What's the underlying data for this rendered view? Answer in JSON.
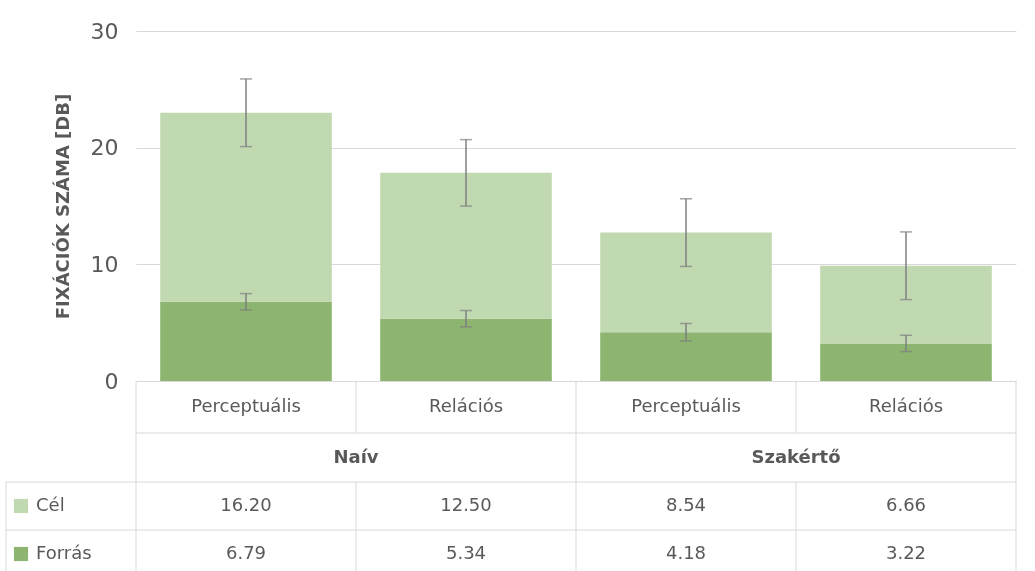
{
  "chart_data": {
    "type": "bar",
    "stacked": true,
    "ylabel": "FIXÁCIÓK SZÁMA [DB]",
    "categories": [
      "Perceptuális",
      "Relációs",
      "Perceptuális",
      "Relációs"
    ],
    "annotations": [
      "Naív",
      "Szakértő"
    ],
    "series": [
      {
        "name": "Forrás",
        "color": "#8db56f",
        "values": [
          6.79,
          5.34,
          4.18,
          3.22
        ],
        "errors": [
          0.7,
          0.7,
          0.75,
          0.7
        ],
        "value_labels": [
          "6.79",
          "5.34",
          "4.18",
          "3.22"
        ]
      },
      {
        "name": "Cél",
        "color": "#c1d9b1",
        "values": [
          16.2,
          12.5,
          8.54,
          6.66
        ],
        "errors": [
          2.9,
          2.85,
          2.9,
          2.9
        ],
        "value_labels": [
          "16.20",
          "12.50",
          "8.54",
          "6.66"
        ]
      }
    ],
    "ylim": [
      0,
      30
    ],
    "yticks": [
      0,
      10,
      20,
      30
    ],
    "grid": "y",
    "legend": "bottom left"
  }
}
